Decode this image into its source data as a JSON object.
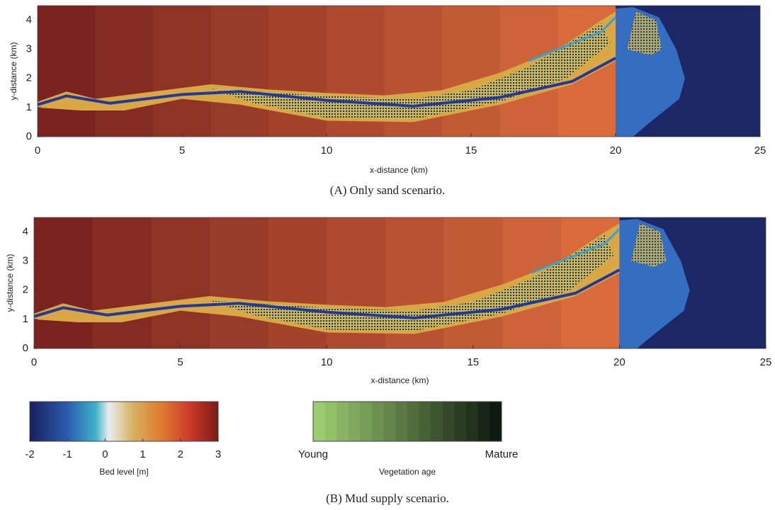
{
  "chart_data": [
    {
      "type": "map",
      "xlabel": "x-distance (km)",
      "ylabel": "y-distance (km)",
      "xlim": [
        0,
        25
      ],
      "ylim": [
        0,
        4.5
      ],
      "xticks": [
        0,
        5,
        10,
        15,
        20,
        25
      ],
      "yticks": [
        0,
        1,
        2,
        3,
        4
      ],
      "caption": "(A) Only sand scenario."
    },
    {
      "type": "map",
      "xlabel": "x-distance (km)",
      "ylabel": "y-distance (km)",
      "xlim": [
        0,
        25
      ],
      "ylim": [
        0,
        4.5
      ],
      "xticks": [
        0,
        5,
        10,
        15,
        20,
        25
      ],
      "yticks": [
        0,
        1,
        2,
        3,
        4
      ],
      "caption": "(B) Mud supply scenario."
    }
  ],
  "colorbars": [
    {
      "label": "Bed level [m]",
      "lim": [
        -2,
        3
      ],
      "ticks": [
        -2,
        -1,
        0,
        1,
        2,
        3
      ]
    },
    {
      "label": "Vegetation age",
      "tick_labels": [
        "Young",
        "Mature"
      ]
    }
  ]
}
